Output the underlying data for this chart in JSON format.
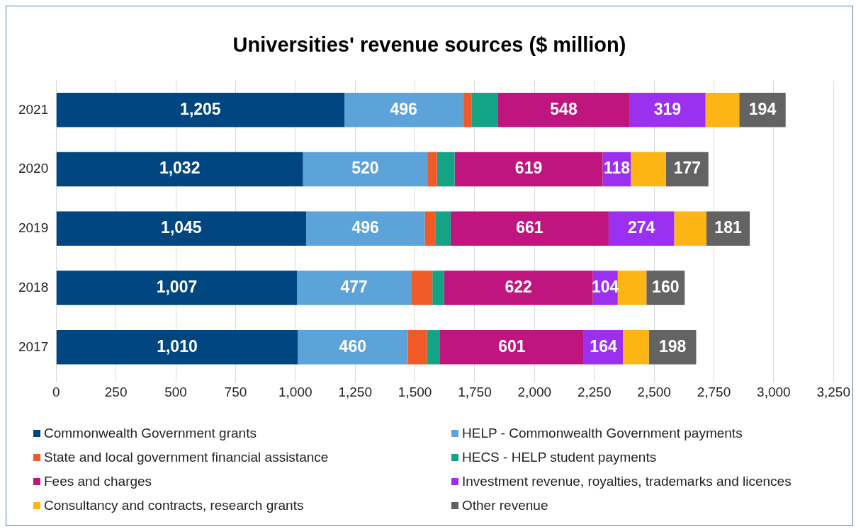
{
  "chart_data": {
    "type": "bar",
    "orientation": "horizontal",
    "stacked": true,
    "title": "Universities' revenue sources ($ million)",
    "categories": [
      "2021",
      "2020",
      "2019",
      "2018",
      "2017"
    ],
    "series": [
      {
        "name": "Commonwealth Government grants",
        "color": "#004680",
        "values": [
          1205,
          1032,
          1045,
          1007,
          1010
        ],
        "value_labels": [
          "1,205",
          "1,032",
          "1,045",
          "1,007",
          "1,010"
        ]
      },
      {
        "name": "HELP - Commonwealth Government payments",
        "color": "#5ba3d9",
        "values": [
          496,
          520,
          496,
          477,
          460
        ],
        "value_labels": [
          "496",
          "520",
          "496",
          "477",
          "460"
        ]
      },
      {
        "name": "State and local government financial assistance",
        "color": "#f05a28",
        "values": [
          37,
          40,
          46,
          89,
          80
        ]
      },
      {
        "name": "HECS - HELP student payments",
        "color": "#13a385",
        "values": [
          110,
          74,
          62,
          49,
          55
        ]
      },
      {
        "name": "Fees and charges",
        "color": "#c0157e",
        "values": [
          548,
          619,
          661,
          622,
          601
        ],
        "value_labels": [
          "548",
          "619",
          "661",
          "622",
          "601"
        ]
      },
      {
        "name": "Investment revenue, royalties, trademarks and licences",
        "color": "#9b30f0",
        "values": [
          319,
          118,
          274,
          104,
          164
        ],
        "value_labels": [
          "319",
          "118",
          "274",
          "104",
          "164"
        ]
      },
      {
        "name": "Consultancy and contracts, research grants",
        "color": "#fdb515",
        "values": [
          141,
          147,
          135,
          120,
          108
        ]
      },
      {
        "name": "Other revenue",
        "color": "#636363",
        "values": [
          194,
          177,
          181,
          160,
          198
        ],
        "value_labels": [
          "194",
          "177",
          "181",
          "160",
          "198"
        ]
      }
    ],
    "xlim": [
      0,
      3250
    ],
    "xticks": [
      0,
      250,
      500,
      750,
      {
        "value": 1000,
        "label": "1,000"
      },
      {
        "value": 1250,
        "label": "1,250"
      },
      {
        "value": 1500,
        "label": "1,500"
      },
      {
        "value": 1750,
        "label": "1,750"
      },
      {
        "value": 2000,
        "label": "2,000"
      },
      {
        "value": 2250,
        "label": "2,250"
      },
      {
        "value": 2500,
        "label": "2,500"
      },
      {
        "value": 2750,
        "label": "2,750"
      },
      {
        "value": 3000,
        "label": "3,000"
      },
      {
        "value": 3250,
        "label": "3,250"
      }
    ],
    "grid": "x",
    "legend": "bottom"
  }
}
